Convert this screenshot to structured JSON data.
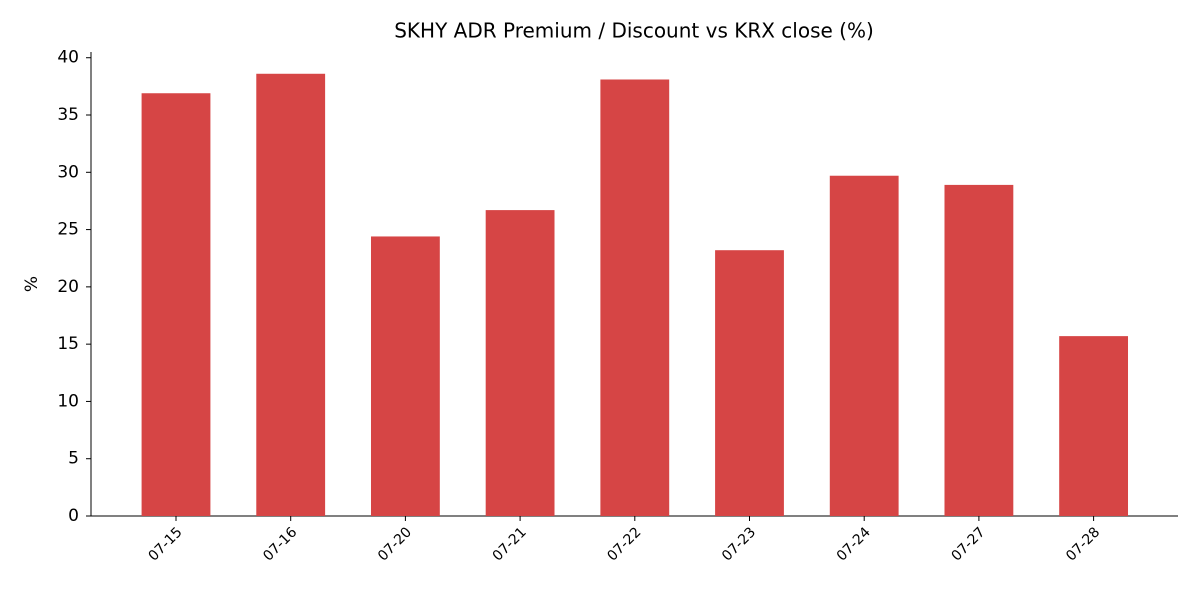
{
  "chart_data": {
    "type": "bar",
    "title": "SKHY ADR Premium / Discount vs KRX close (%)",
    "y_label": "%",
    "categories": [
      "07-15",
      "07-16",
      "07-20",
      "07-21",
      "07-22",
      "07-23",
      "07-24",
      "07-27",
      "07-28"
    ],
    "values": [
      36.9,
      38.6,
      24.4,
      26.7,
      38.1,
      23.2,
      29.7,
      28.9,
      15.7
    ],
    "color": "#d64545",
    "ylim": [
      0,
      40.5
    ],
    "yticks": [
      0,
      5,
      10,
      15,
      20,
      25,
      30,
      35,
      40
    ],
    "grid": false
  }
}
